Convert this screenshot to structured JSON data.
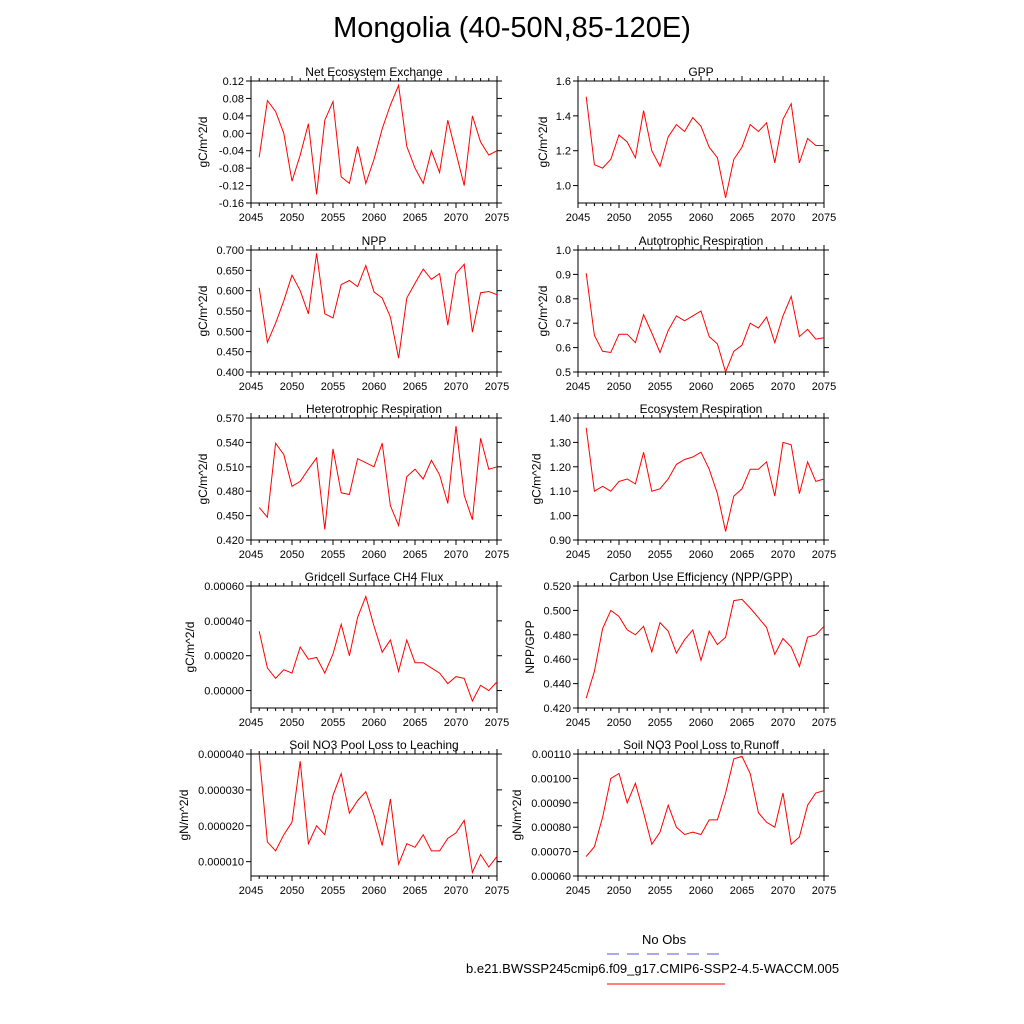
{
  "title": "Mongolia (40-50N,85-120E)",
  "colors": {
    "series": "#ff0000",
    "obs": "#5555dd",
    "axis": "#000000"
  },
  "legend": {
    "obs_label": "No Obs",
    "model_label": "b.e21.BWSSP245cmip6.f09_g17.CMIP6-SSP2-4.5-WACCM.005"
  },
  "chart_data": [
    {
      "type": "line",
      "title": "Net Ecosystem Exchange",
      "xlabel": "",
      "ylabel": "gC/m^2/d",
      "xlim": [
        2045,
        2075
      ],
      "ylim": [
        -0.16,
        0.12
      ],
      "xticks": [
        2045,
        2050,
        2055,
        2060,
        2065,
        2070,
        2075
      ],
      "yticks": [
        -0.16,
        -0.12,
        -0.08,
        -0.04,
        0.0,
        0.04,
        0.08,
        0.12
      ],
      "ytick_labels": [
        "-0.16",
        "-0.12",
        "-0.08",
        "-0.04",
        "0.00",
        "0.04",
        "0.08",
        "0.12"
      ],
      "x": [
        2046,
        2047,
        2048,
        2049,
        2050,
        2051,
        2052,
        2053,
        2054,
        2055,
        2056,
        2057,
        2058,
        2059,
        2060,
        2061,
        2062,
        2063,
        2064,
        2065,
        2066,
        2067,
        2068,
        2069,
        2070,
        2071,
        2072,
        2073,
        2074,
        2075
      ],
      "values": [
        -0.055,
        0.075,
        0.05,
        0.0,
        -0.11,
        -0.05,
        0.022,
        -0.14,
        0.03,
        0.073,
        -0.1,
        -0.115,
        -0.03,
        -0.115,
        -0.06,
        0.01,
        0.065,
        0.11,
        -0.03,
        -0.08,
        -0.115,
        -0.04,
        -0.09,
        0.03,
        -0.045,
        -0.12,
        0.04,
        -0.02,
        -0.05,
        -0.04
      ]
    },
    {
      "type": "line",
      "title": "GPP",
      "xlabel": "",
      "ylabel": "gC/m^2/d",
      "xlim": [
        2045,
        2075
      ],
      "ylim": [
        0.9,
        1.6
      ],
      "xticks": [
        2045,
        2050,
        2055,
        2060,
        2065,
        2070,
        2075
      ],
      "yticks": [
        1.0,
        1.2,
        1.4,
        1.6
      ],
      "ytick_labels": [
        "1.0",
        "1.2",
        "1.4",
        "1.6"
      ],
      "x": [
        2046,
        2047,
        2048,
        2049,
        2050,
        2051,
        2052,
        2053,
        2054,
        2055,
        2056,
        2057,
        2058,
        2059,
        2060,
        2061,
        2062,
        2063,
        2064,
        2065,
        2066,
        2067,
        2068,
        2069,
        2070,
        2071,
        2072,
        2073,
        2074,
        2075
      ],
      "values": [
        1.51,
        1.12,
        1.1,
        1.15,
        1.29,
        1.25,
        1.16,
        1.43,
        1.2,
        1.11,
        1.28,
        1.35,
        1.31,
        1.39,
        1.34,
        1.22,
        1.16,
        0.93,
        1.15,
        1.22,
        1.35,
        1.31,
        1.36,
        1.13,
        1.38,
        1.47,
        1.13,
        1.27,
        1.23,
        1.23
      ]
    },
    {
      "type": "line",
      "title": "NPP",
      "xlabel": "",
      "ylabel": "gC/m^2/d",
      "xlim": [
        2045,
        2075
      ],
      "ylim": [
        0.4,
        0.7
      ],
      "xticks": [
        2045,
        2050,
        2055,
        2060,
        2065,
        2070,
        2075
      ],
      "yticks": [
        0.4,
        0.45,
        0.5,
        0.55,
        0.6,
        0.65,
        0.7
      ],
      "ytick_labels": [
        "0.400",
        "0.450",
        "0.500",
        "0.550",
        "0.600",
        "0.650",
        "0.700"
      ],
      "x": [
        2046,
        2047,
        2048,
        2049,
        2050,
        2051,
        2052,
        2053,
        2054,
        2055,
        2056,
        2057,
        2058,
        2059,
        2060,
        2061,
        2062,
        2063,
        2064,
        2065,
        2066,
        2067,
        2068,
        2069,
        2070,
        2071,
        2072,
        2073,
        2074,
        2075
      ],
      "values": [
        0.607,
        0.473,
        0.52,
        0.575,
        0.638,
        0.6,
        0.543,
        0.692,
        0.543,
        0.533,
        0.615,
        0.625,
        0.61,
        0.662,
        0.597,
        0.582,
        0.535,
        0.434,
        0.582,
        0.618,
        0.653,
        0.628,
        0.642,
        0.515,
        0.642,
        0.665,
        0.498,
        0.595,
        0.598,
        0.59
      ]
    },
    {
      "type": "line",
      "title": "Autotrophic Respiration",
      "xlabel": "",
      "ylabel": "gC/m^2/d",
      "xlim": [
        2045,
        2075
      ],
      "ylim": [
        0.5,
        1.0
      ],
      "xticks": [
        2045,
        2050,
        2055,
        2060,
        2065,
        2070,
        2075
      ],
      "yticks": [
        0.5,
        0.6,
        0.7,
        0.8,
        0.9,
        1.0
      ],
      "ytick_labels": [
        "0.5",
        "0.6",
        "0.7",
        "0.8",
        "0.9",
        "1.0"
      ],
      "x": [
        2046,
        2047,
        2048,
        2049,
        2050,
        2051,
        2052,
        2053,
        2054,
        2055,
        2056,
        2057,
        2058,
        2059,
        2060,
        2061,
        2062,
        2063,
        2064,
        2065,
        2066,
        2067,
        2068,
        2069,
        2070,
        2071,
        2072,
        2073,
        2074,
        2075
      ],
      "values": [
        0.905,
        0.65,
        0.585,
        0.58,
        0.655,
        0.655,
        0.62,
        0.735,
        0.66,
        0.58,
        0.67,
        0.73,
        0.71,
        0.73,
        0.75,
        0.645,
        0.615,
        0.5,
        0.585,
        0.61,
        0.7,
        0.68,
        0.725,
        0.62,
        0.73,
        0.81,
        0.645,
        0.675,
        0.635,
        0.64
      ]
    },
    {
      "type": "line",
      "title": "Heterotrophic Respiration",
      "xlabel": "",
      "ylabel": "gC/m^2/d",
      "xlim": [
        2045,
        2075
      ],
      "ylim": [
        0.42,
        0.57
      ],
      "xticks": [
        2045,
        2050,
        2055,
        2060,
        2065,
        2070,
        2075
      ],
      "yticks": [
        0.42,
        0.45,
        0.48,
        0.51,
        0.54,
        0.57
      ],
      "ytick_labels": [
        "0.420",
        "0.450",
        "0.480",
        "0.510",
        "0.540",
        "0.570"
      ],
      "x": [
        2046,
        2047,
        2048,
        2049,
        2050,
        2051,
        2052,
        2053,
        2054,
        2055,
        2056,
        2057,
        2058,
        2059,
        2060,
        2061,
        2062,
        2063,
        2064,
        2065,
        2066,
        2067,
        2068,
        2069,
        2070,
        2071,
        2072,
        2073,
        2074,
        2075
      ],
      "values": [
        0.46,
        0.448,
        0.539,
        0.525,
        0.486,
        0.492,
        0.507,
        0.521,
        0.433,
        0.532,
        0.478,
        0.476,
        0.52,
        0.515,
        0.51,
        0.539,
        0.462,
        0.438,
        0.498,
        0.507,
        0.495,
        0.518,
        0.5,
        0.465,
        0.56,
        0.475,
        0.445,
        0.545,
        0.507,
        0.51
      ]
    },
    {
      "type": "line",
      "title": "Ecosystem Respiration",
      "xlabel": "",
      "ylabel": "gC/m^2/d",
      "xlim": [
        2045,
        2075
      ],
      "ylim": [
        0.9,
        1.4
      ],
      "xticks": [
        2045,
        2050,
        2055,
        2060,
        2065,
        2070,
        2075
      ],
      "yticks": [
        0.9,
        1.0,
        1.1,
        1.2,
        1.3,
        1.4
      ],
      "ytick_labels": [
        "0.90",
        "1.00",
        "1.10",
        "1.20",
        "1.30",
        "1.40"
      ],
      "x": [
        2046,
        2047,
        2048,
        2049,
        2050,
        2051,
        2052,
        2053,
        2054,
        2055,
        2056,
        2057,
        2058,
        2059,
        2060,
        2061,
        2062,
        2063,
        2064,
        2065,
        2066,
        2067,
        2068,
        2069,
        2070,
        2071,
        2072,
        2073,
        2074,
        2075
      ],
      "values": [
        1.36,
        1.1,
        1.12,
        1.1,
        1.14,
        1.15,
        1.13,
        1.26,
        1.1,
        1.11,
        1.15,
        1.21,
        1.23,
        1.24,
        1.26,
        1.19,
        1.09,
        0.935,
        1.08,
        1.11,
        1.19,
        1.19,
        1.22,
        1.08,
        1.3,
        1.29,
        1.09,
        1.22,
        1.14,
        1.15
      ]
    },
    {
      "type": "line",
      "title": "Gridcell Surface CH4 Flux",
      "xlabel": "",
      "ylabel": "gC/m^2/d",
      "xlim": [
        2045,
        2075
      ],
      "ylim": [
        -0.0001,
        0.0006
      ],
      "xticks": [
        2045,
        2050,
        2055,
        2060,
        2065,
        2070,
        2075
      ],
      "yticks": [
        0.0,
        0.0002,
        0.0004,
        0.0006
      ],
      "ytick_labels": [
        "0.00000",
        "0.00020",
        "0.00040",
        "0.00060"
      ],
      "x": [
        2046,
        2047,
        2048,
        2049,
        2050,
        2051,
        2052,
        2053,
        2054,
        2055,
        2056,
        2057,
        2058,
        2059,
        2060,
        2061,
        2062,
        2063,
        2064,
        2065,
        2066,
        2067,
        2068,
        2069,
        2070,
        2071,
        2072,
        2073,
        2074,
        2075
      ],
      "values": [
        0.00034,
        0.00013,
        7e-05,
        0.00012,
        0.0001,
        0.00025,
        0.00018,
        0.00019,
        0.0001,
        0.00021,
        0.00038,
        0.0002,
        0.00042,
        0.00054,
        0.00037,
        0.00022,
        0.00029,
        0.00011,
        0.00029,
        0.00016,
        0.00016,
        0.00013,
        0.0001,
        4e-05,
        8e-05,
        7e-05,
        -6e-05,
        3e-05,
        0.0,
        5e-05
      ]
    },
    {
      "type": "line",
      "title": "Carbon Use Efficiency (NPP/GPP)",
      "xlabel": "",
      "ylabel": "NPP/GPP",
      "xlim": [
        2045,
        2075
      ],
      "ylim": [
        0.42,
        0.52
      ],
      "xticks": [
        2045,
        2050,
        2055,
        2060,
        2065,
        2070,
        2075
      ],
      "yticks": [
        0.42,
        0.44,
        0.46,
        0.48,
        0.5,
        0.52
      ],
      "ytick_labels": [
        "0.420",
        "0.440",
        "0.460",
        "0.480",
        "0.500",
        "0.520"
      ],
      "x": [
        2046,
        2047,
        2048,
        2049,
        2050,
        2051,
        2052,
        2053,
        2054,
        2055,
        2056,
        2057,
        2058,
        2059,
        2060,
        2061,
        2062,
        2063,
        2064,
        2065,
        2066,
        2067,
        2068,
        2069,
        2070,
        2071,
        2072,
        2073,
        2074,
        2075
      ],
      "values": [
        0.428,
        0.45,
        0.485,
        0.5,
        0.495,
        0.484,
        0.48,
        0.487,
        0.466,
        0.49,
        0.483,
        0.465,
        0.476,
        0.484,
        0.459,
        0.483,
        0.472,
        0.478,
        0.508,
        0.509,
        0.502,
        0.494,
        0.486,
        0.464,
        0.477,
        0.47,
        0.454,
        0.478,
        0.48,
        0.487
      ]
    },
    {
      "type": "line",
      "title": "Soil NO3 Pool Loss to Leaching",
      "xlabel": "",
      "ylabel": "gN/m^2/d",
      "xlim": [
        2045,
        2075
      ],
      "ylim": [
        6e-06,
        4e-05
      ],
      "xticks": [
        2045,
        2050,
        2055,
        2060,
        2065,
        2070,
        2075
      ],
      "yticks": [
        1e-05,
        2e-05,
        3e-05,
        4e-05
      ],
      "ytick_labels": [
        "0.000010",
        "0.000020",
        "0.000030",
        "0.000040"
      ],
      "x": [
        2046,
        2047,
        2048,
        2049,
        2050,
        2051,
        2052,
        2053,
        2054,
        2055,
        2056,
        2057,
        2058,
        2059,
        2060,
        2061,
        2062,
        2063,
        2064,
        2065,
        2066,
        2067,
        2068,
        2069,
        2070,
        2071,
        2072,
        2073,
        2074,
        2075
      ],
      "values": [
        4e-05,
        1.55e-05,
        1.3e-05,
        1.75e-05,
        2.1e-05,
        3.8e-05,
        1.5e-05,
        2e-05,
        1.75e-05,
        2.85e-05,
        3.45e-05,
        2.35e-05,
        2.7e-05,
        2.95e-05,
        2.3e-05,
        1.45e-05,
        2.75e-05,
        9.3e-06,
        1.5e-05,
        1.4e-05,
        1.75e-05,
        1.3e-05,
        1.3e-05,
        1.65e-05,
        1.8e-05,
        2.15e-05,
        7e-06,
        1.2e-05,
        8.5e-06,
        1.15e-05
      ]
    },
    {
      "type": "line",
      "title": "Soil NO3 Pool Loss to Runoff",
      "xlabel": "",
      "ylabel": "gN/m^2/d",
      "xlim": [
        2045,
        2075
      ],
      "ylim": [
        0.0006,
        0.0011
      ],
      "xticks": [
        2045,
        2050,
        2055,
        2060,
        2065,
        2070,
        2075
      ],
      "yticks": [
        0.0006,
        0.0007,
        0.0008,
        0.0009,
        0.001,
        0.0011
      ],
      "ytick_labels": [
        "0.00060",
        "0.00070",
        "0.00080",
        "0.00090",
        "0.00100",
        "0.00110"
      ],
      "x": [
        2046,
        2047,
        2048,
        2049,
        2050,
        2051,
        2052,
        2053,
        2054,
        2055,
        2056,
        2057,
        2058,
        2059,
        2060,
        2061,
        2062,
        2063,
        2064,
        2065,
        2066,
        2067,
        2068,
        2069,
        2070,
        2071,
        2072,
        2073,
        2074,
        2075
      ],
      "values": [
        0.00068,
        0.00072,
        0.00084,
        0.001,
        0.00102,
        0.0009,
        0.00098,
        0.00086,
        0.00073,
        0.00078,
        0.00089,
        0.0008,
        0.00077,
        0.00078,
        0.00077,
        0.00083,
        0.00083,
        0.00094,
        0.00108,
        0.00109,
        0.00102,
        0.00086,
        0.00082,
        0.0008,
        0.00094,
        0.00073,
        0.00076,
        0.00089,
        0.00094,
        0.00095
      ]
    }
  ]
}
